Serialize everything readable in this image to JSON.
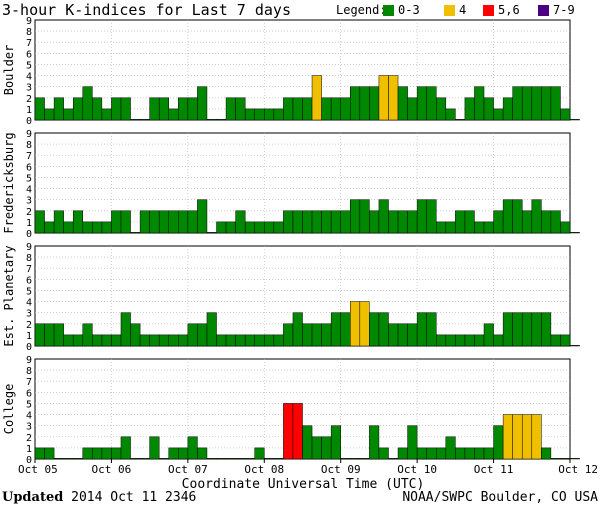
{
  "chart_data": {
    "type": "bar",
    "title": "3-hour K-indices for Last 7 days",
    "legend": {
      "label": "Legend:",
      "items": [
        {
          "label": "0-3",
          "color": "#008800"
        },
        {
          "label": "4",
          "color": "#f0c000"
        },
        {
          "label": "5,6",
          "color": "#ff0000"
        },
        {
          "label": "7-9",
          "color": "#4b0082"
        }
      ]
    },
    "colors": {
      "low": "#008800",
      "k4": "#f0c000",
      "k5_6": "#ff0000",
      "k7_9": "#4b0082"
    },
    "xlabel": "Coordinate Universal Time (UTC)",
    "x_ticks": [
      "Oct 05",
      "Oct 06",
      "Oct 07",
      "Oct 08",
      "Oct 09",
      "Oct 10",
      "Oct 11",
      "Oct 12"
    ],
    "x_range": [
      "2014-10-05 00:00",
      "2014-10-12 00:00"
    ],
    "interval_hours": 3,
    "ylim": [
      0,
      9
    ],
    "y_ticks": [
      0,
      1,
      2,
      3,
      4,
      5,
      6,
      7,
      8,
      9
    ],
    "grid": true,
    "legend_position": "top-right",
    "series": [
      {
        "name": "Boulder",
        "values": [
          2,
          1,
          2,
          1,
          2,
          3,
          2,
          1,
          2,
          2,
          0,
          0,
          2,
          2,
          1,
          2,
          2,
          3,
          0,
          0,
          2,
          2,
          1,
          1,
          1,
          1,
          2,
          2,
          2,
          4,
          2,
          2,
          2,
          3,
          3,
          3,
          4,
          4,
          3,
          2,
          3,
          3,
          2,
          1,
          0,
          2,
          3,
          2,
          1,
          2,
          3,
          3,
          3,
          3,
          3,
          1,
          0
        ]
      },
      {
        "name": "Fredericksburg",
        "values": [
          2,
          1,
          2,
          1,
          2,
          1,
          1,
          1,
          2,
          2,
          0,
          2,
          2,
          2,
          2,
          2,
          2,
          3,
          0,
          1,
          1,
          2,
          1,
          1,
          1,
          1,
          2,
          2,
          2,
          2,
          2,
          2,
          2,
          3,
          3,
          2,
          3,
          2,
          2,
          2,
          3,
          3,
          1,
          1,
          2,
          2,
          1,
          1,
          2,
          3,
          3,
          2,
          3,
          2,
          2,
          1,
          0
        ]
      },
      {
        "name": "Est. Planetary",
        "values": [
          2,
          2,
          2,
          1,
          1,
          2,
          1,
          1,
          1,
          3,
          2,
          1,
          1,
          1,
          1,
          1,
          2,
          2,
          3,
          1,
          1,
          1,
          1,
          1,
          1,
          1,
          2,
          3,
          2,
          2,
          2,
          3,
          3,
          4,
          4,
          3,
          3,
          2,
          2,
          2,
          3,
          3,
          1,
          1,
          1,
          1,
          1,
          2,
          1,
          3,
          3,
          3,
          3,
          3,
          1,
          1,
          0
        ]
      },
      {
        "name": "College",
        "values": [
          1,
          1,
          0,
          0,
          0,
          1,
          1,
          1,
          1,
          2,
          0,
          0,
          2,
          0,
          1,
          1,
          2,
          1,
          0,
          0,
          0,
          0,
          0,
          1,
          0,
          0,
          5,
          5,
          3,
          2,
          2,
          3,
          0,
          0,
          0,
          3,
          1,
          0,
          1,
          3,
          1,
          1,
          1,
          2,
          1,
          1,
          1,
          1,
          3,
          4,
          4,
          4,
          4,
          1,
          0,
          0,
          0
        ]
      }
    ]
  },
  "footer": {
    "updated_label": "Updated",
    "updated_value": "2014 Oct 11 2346",
    "credit": "NOAA/SWPC Boulder, CO USA"
  }
}
